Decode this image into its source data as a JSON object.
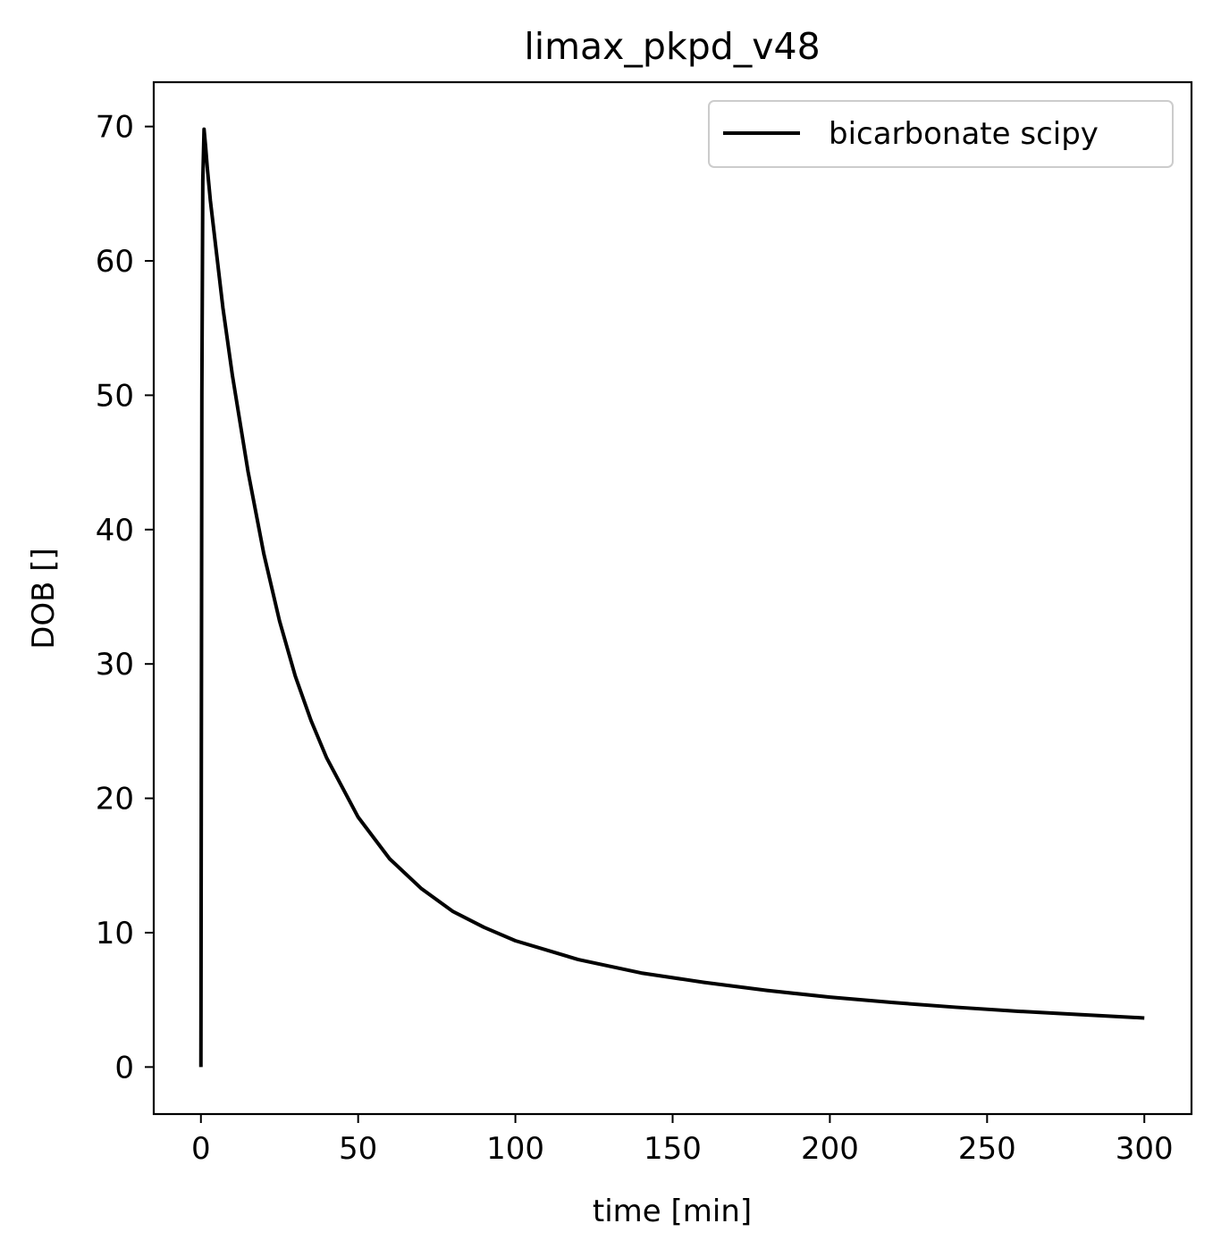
{
  "chart_data": {
    "type": "line",
    "title": "limax_pkpd_v48",
    "xlabel": "time [min]",
    "ylabel": "DOB []",
    "xlim": [
      -15,
      315
    ],
    "ylim": [
      -3.5,
      73.3
    ],
    "xticks": [
      0,
      50,
      100,
      150,
      200,
      250,
      300
    ],
    "yticks": [
      0,
      10,
      20,
      30,
      40,
      50,
      60,
      70
    ],
    "grid": false,
    "legend_position": "top-right",
    "series": [
      {
        "name": "bicarbonate scipy",
        "color": "#000000",
        "x": [
          0,
          0.3,
          0.6,
          1,
          1.5,
          2,
          3,
          5,
          7,
          10,
          15,
          20,
          25,
          30,
          35,
          40,
          50,
          60,
          70,
          80,
          90,
          100,
          120,
          140,
          160,
          180,
          200,
          220,
          240,
          260,
          280,
          300
        ],
        "y": [
          0,
          50,
          66,
          69.8,
          68.5,
          67,
          64.5,
          60.5,
          56.5,
          51.5,
          44.3,
          38.2,
          33.2,
          29.1,
          25.8,
          23.0,
          18.6,
          15.5,
          13.3,
          11.6,
          10.4,
          9.4,
          8.0,
          7.0,
          6.3,
          5.7,
          5.2,
          4.8,
          4.45,
          4.15,
          3.9,
          3.65
        ]
      }
    ]
  }
}
